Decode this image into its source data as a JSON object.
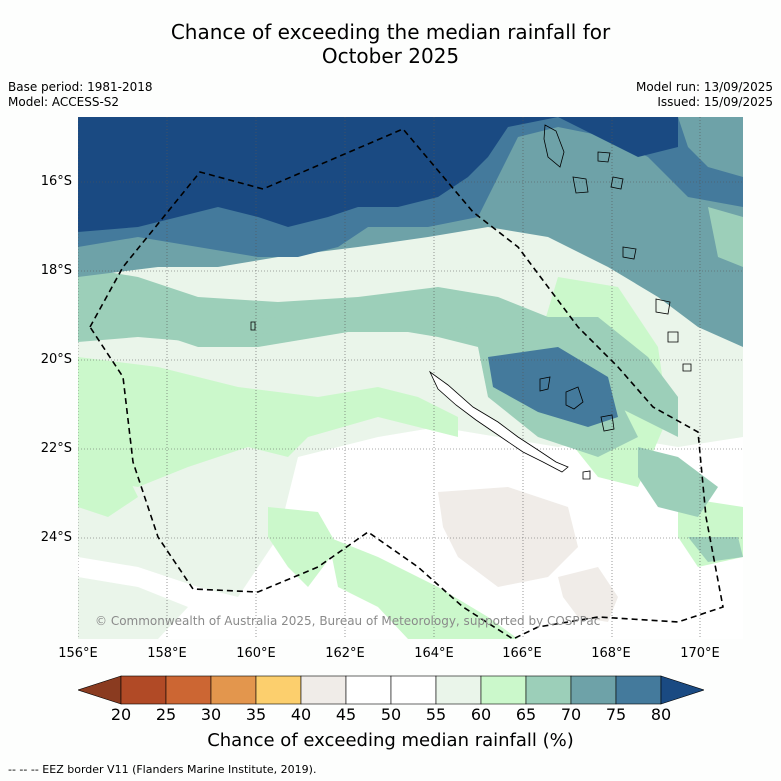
{
  "title_line1": "Chance of exceeding the median rainfall for",
  "title_line2": "October 2025",
  "meta": {
    "base_period": "Base period: 1981-2018",
    "model": "Model: ACCESS-S2",
    "model_run": "Model run: 13/09/2025",
    "issued": "Issued: 15/09/2025"
  },
  "copyright": "© Commonwealth of Australia 2025, Bureau of Meteorology, supported by COSPPac",
  "lat_labels": [
    "16°S",
    "18°S",
    "20°S",
    "22°S",
    "24°S"
  ],
  "lon_labels": [
    "156°E",
    "158°E",
    "160°E",
    "162°E",
    "164°E",
    "166°E",
    "168°E",
    "170°E"
  ],
  "colorbar": {
    "ticks": [
      "20",
      "25",
      "30",
      "35",
      "40",
      "45",
      "50",
      "55",
      "60",
      "65",
      "70",
      "75",
      "80"
    ],
    "colors": [
      "#8a3b20",
      "#b14a26",
      "#cc6633",
      "#e3964d",
      "#fccf6d",
      "#f0ece8",
      "#ffffff",
      "#ffffff",
      "#eaf5ea",
      "#cbf8cb",
      "#9ccfb9",
      "#6ea2a8",
      "#447a9c",
      "#1a4a82"
    ],
    "label": "Chance of exceeding median rainfall (%)"
  },
  "eez_legend": "-- -- -- EEZ border V11 (Flanders Marine Institute, 2019)."
}
